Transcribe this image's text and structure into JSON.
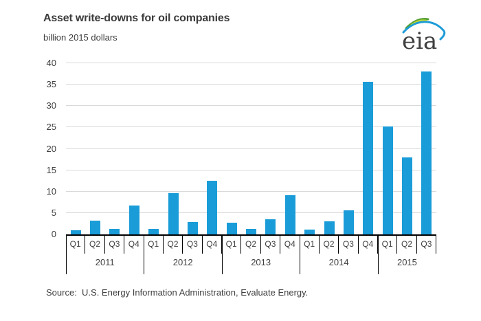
{
  "header": {
    "title": "Asset write-downs for oil companies",
    "subtitle": "billion 2015 dollars",
    "logo_text": "eia"
  },
  "source_line": "Source:  U.S. Energy Information Administration, Evaluate Energy.",
  "chart_data": {
    "type": "bar",
    "title": "Asset write-downs for oil companies",
    "subtitle": "billion 2015 dollars",
    "xlabel": "",
    "ylabel": "billion 2015 dollars",
    "ylim": [
      0,
      40
    ],
    "yticks": [
      0,
      5,
      10,
      15,
      20,
      25,
      30,
      35,
      40
    ],
    "grid": "horizontal",
    "legend": "none",
    "bar_color": "#1a9cd8",
    "gridline_color": "#d9d9d9",
    "axis_color": "#000000",
    "text_color": "#404040",
    "categories": [
      "Q1 2011",
      "Q2 2011",
      "Q3 2011",
      "Q4 2011",
      "Q1 2012",
      "Q2 2012",
      "Q3 2012",
      "Q4 2012",
      "Q1 2013",
      "Q2 2013",
      "Q3 2013",
      "Q4 2013",
      "Q1 2014",
      "Q2 2014",
      "Q3 2014",
      "Q4 2014",
      "Q1 2015",
      "Q2 2015",
      "Q3 2015"
    ],
    "values": [
      0.9,
      3.2,
      1.3,
      6.8,
      1.3,
      9.6,
      2.9,
      12.6,
      2.7,
      1.3,
      3.5,
      9.2,
      1.2,
      3.0,
      5.6,
      35.6,
      25.2,
      18.0,
      38.0
    ],
    "groups": [
      {
        "year": "2011",
        "quarters": [
          "Q1",
          "Q2",
          "Q3",
          "Q4"
        ],
        "values": [
          0.9,
          3.2,
          1.3,
          6.8
        ]
      },
      {
        "year": "2012",
        "quarters": [
          "Q1",
          "Q2",
          "Q3",
          "Q4"
        ],
        "values": [
          1.3,
          9.6,
          2.9,
          12.6
        ]
      },
      {
        "year": "2013",
        "quarters": [
          "Q1",
          "Q2",
          "Q3",
          "Q4"
        ],
        "values": [
          2.7,
          1.3,
          3.5,
          9.2
        ]
      },
      {
        "year": "2014",
        "quarters": [
          "Q1",
          "Q2",
          "Q3",
          "Q4"
        ],
        "values": [
          1.2,
          3.0,
          5.6,
          35.6
        ]
      },
      {
        "year": "2015",
        "quarters": [
          "Q1",
          "Q2",
          "Q3"
        ],
        "values": [
          25.2,
          18.0,
          38.0
        ]
      }
    ]
  }
}
